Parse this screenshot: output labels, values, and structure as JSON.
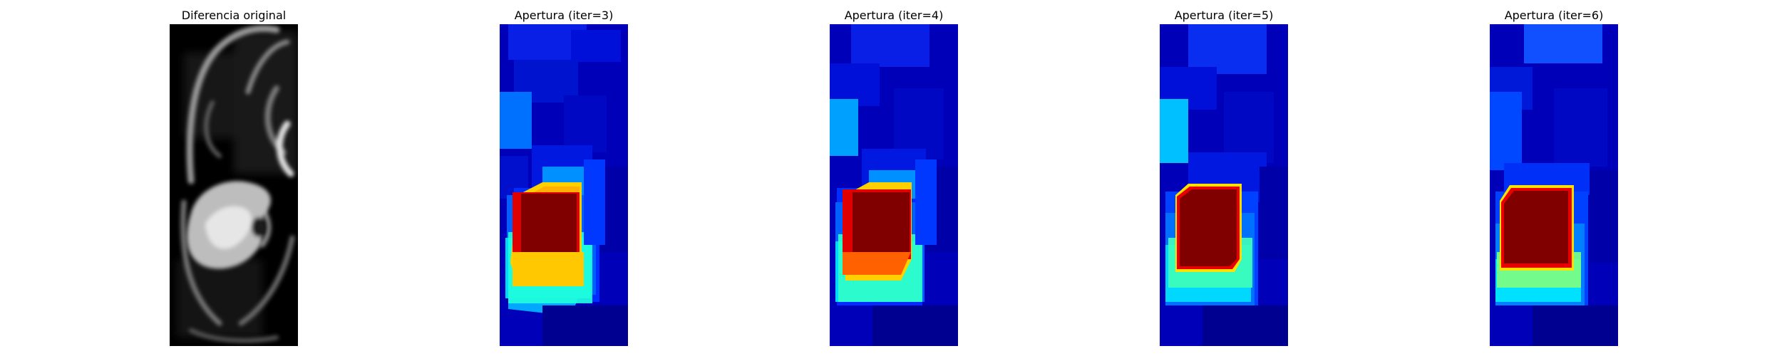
{
  "panels": [
    {
      "title": "Diferencia original",
      "colormap": "gray"
    },
    {
      "title": "Apertura (iter=3)",
      "colormap": "jet"
    },
    {
      "title": "Apertura (iter=4)",
      "colormap": "jet"
    },
    {
      "title": "Apertura (iter=5)",
      "colormap": "jet"
    },
    {
      "title": "Apertura (iter=6)",
      "colormap": "jet"
    }
  ]
}
